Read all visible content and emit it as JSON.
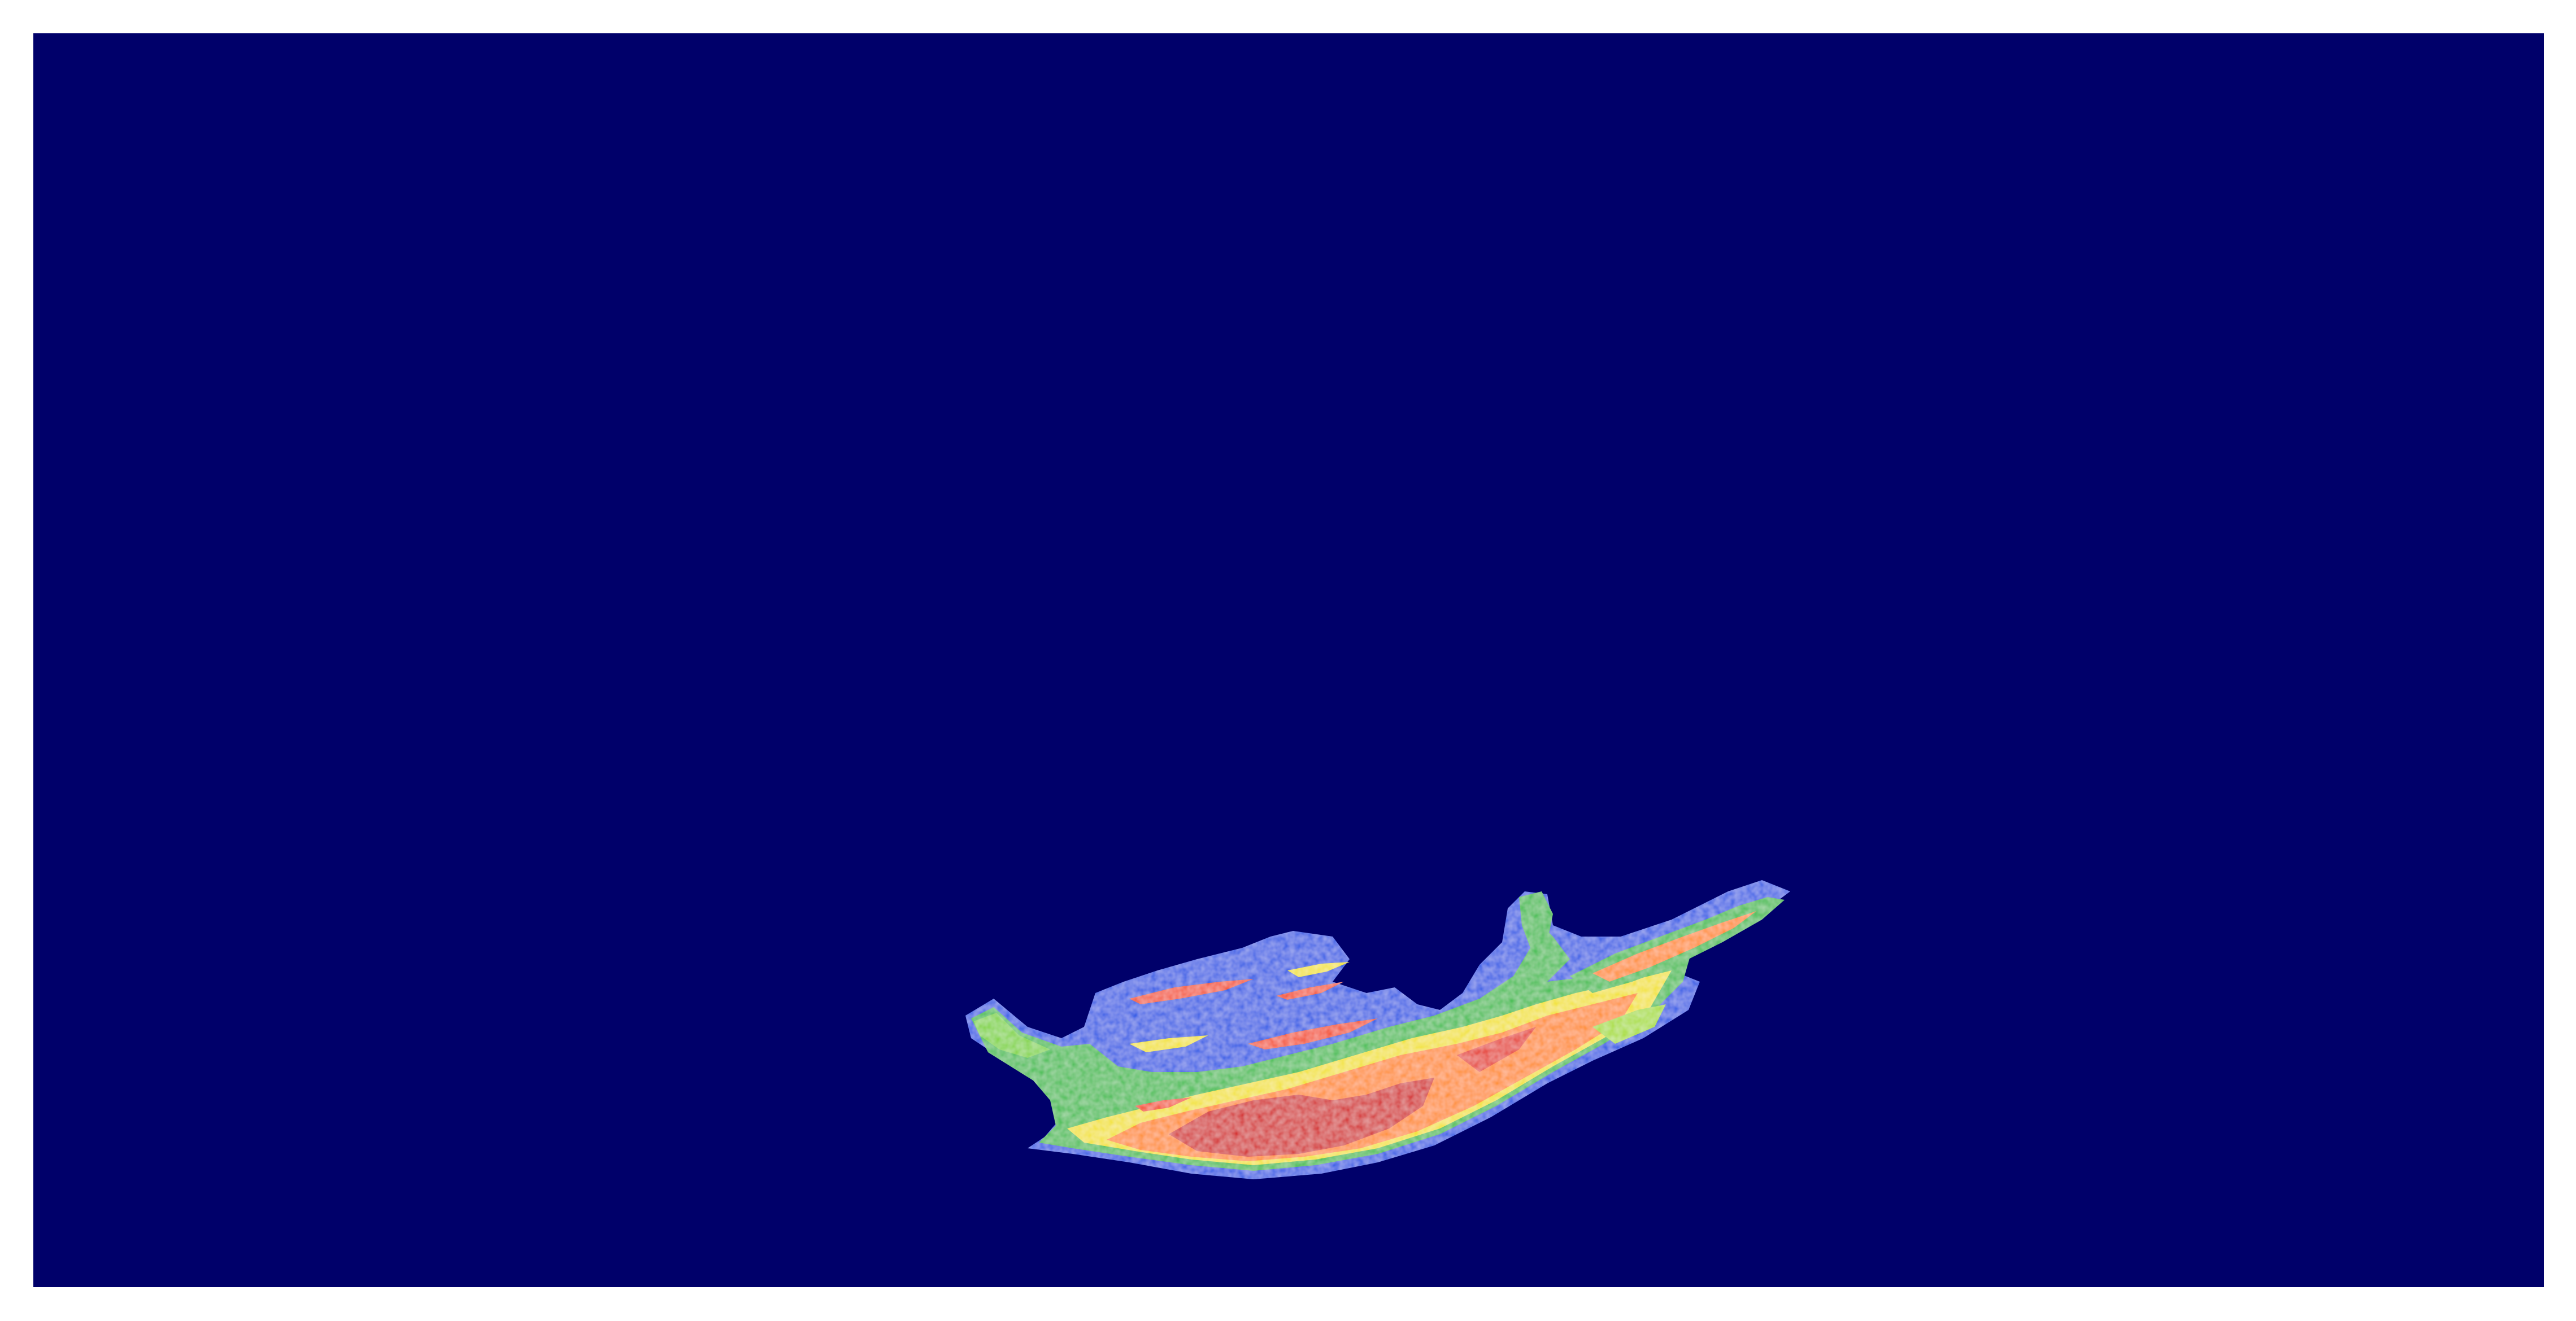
{
  "image": {
    "colormap": "jet",
    "background_color": "#00006a",
    "frame_color": "#ffffff",
    "colors": {
      "dark_blue": "#00006a",
      "blue": "#1f55e6",
      "light_blue": "#2f8ff0",
      "green": "#3dbd4c",
      "yellow_green": "#a8dd2a",
      "yellow": "#f2e21a",
      "orange": "#ff8a12",
      "red_orange": "#f4481a",
      "red": "#d40808"
    },
    "regions": [
      "low-intensity-background",
      "thermal-blob-outer-shell",
      "thermal-blob-mid-band",
      "thermal-blob-hot-core"
    ]
  }
}
